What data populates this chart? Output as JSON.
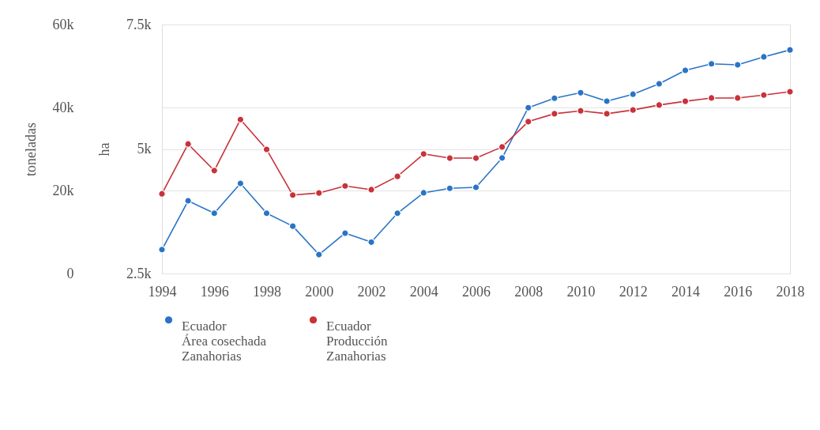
{
  "chart_data": {
    "type": "line",
    "x": [
      1994,
      1995,
      1996,
      1997,
      1998,
      1999,
      2000,
      2001,
      2002,
      2003,
      2004,
      2005,
      2006,
      2007,
      2008,
      2009,
      2010,
      2011,
      2012,
      2013,
      2014,
      2015,
      2016,
      2017,
      2018
    ],
    "series": [
      {
        "name": "Ecuador\nÁrea cosechada\nZanahorias",
        "color": "#2a74c6",
        "axis": "y2",
        "values": [
          2980,
          3960,
          3710,
          4310,
          3710,
          3450,
          2880,
          3310,
          3130,
          3710,
          4120,
          4210,
          4230,
          4820,
          5830,
          6020,
          6130,
          5960,
          6100,
          6310,
          6580,
          6710,
          6690,
          6850,
          6990
        ]
      },
      {
        "name": "Ecuador\nProducción\nZanahorias",
        "color": "#c8323a",
        "values": [
          19200,
          31200,
          24800,
          37100,
          29900,
          18900,
          19400,
          21100,
          20200,
          23400,
          28800,
          27800,
          27800,
          30500,
          36600,
          38500,
          39200,
          38500,
          39400,
          40600,
          41500,
          42300,
          42300,
          43000,
          43800
        ]
      }
    ],
    "ylabel": "toneladas",
    "y2label": "ha",
    "xlim": [
      1994,
      2018
    ],
    "xticks": [
      1994,
      1996,
      1998,
      2000,
      2002,
      2004,
      2006,
      2008,
      2010,
      2012,
      2014,
      2016,
      2018
    ],
    "ylim": [
      0,
      60000
    ],
    "yticks": [
      0,
      {
        "value": 20000,
        "label": "20k"
      },
      {
        "value": 40000,
        "label": "40k"
      },
      {
        "value": 60000,
        "label": "60k"
      }
    ],
    "y2lim": [
      2500,
      7500
    ],
    "y2ticks": [
      {
        "value": 2500,
        "label": "2.5k"
      },
      {
        "value": 5000,
        "label": "5k"
      },
      {
        "value": 7500,
        "label": "7.5k"
      }
    ],
    "grid": "y",
    "legend": "bottom",
    "marker": "circle"
  }
}
